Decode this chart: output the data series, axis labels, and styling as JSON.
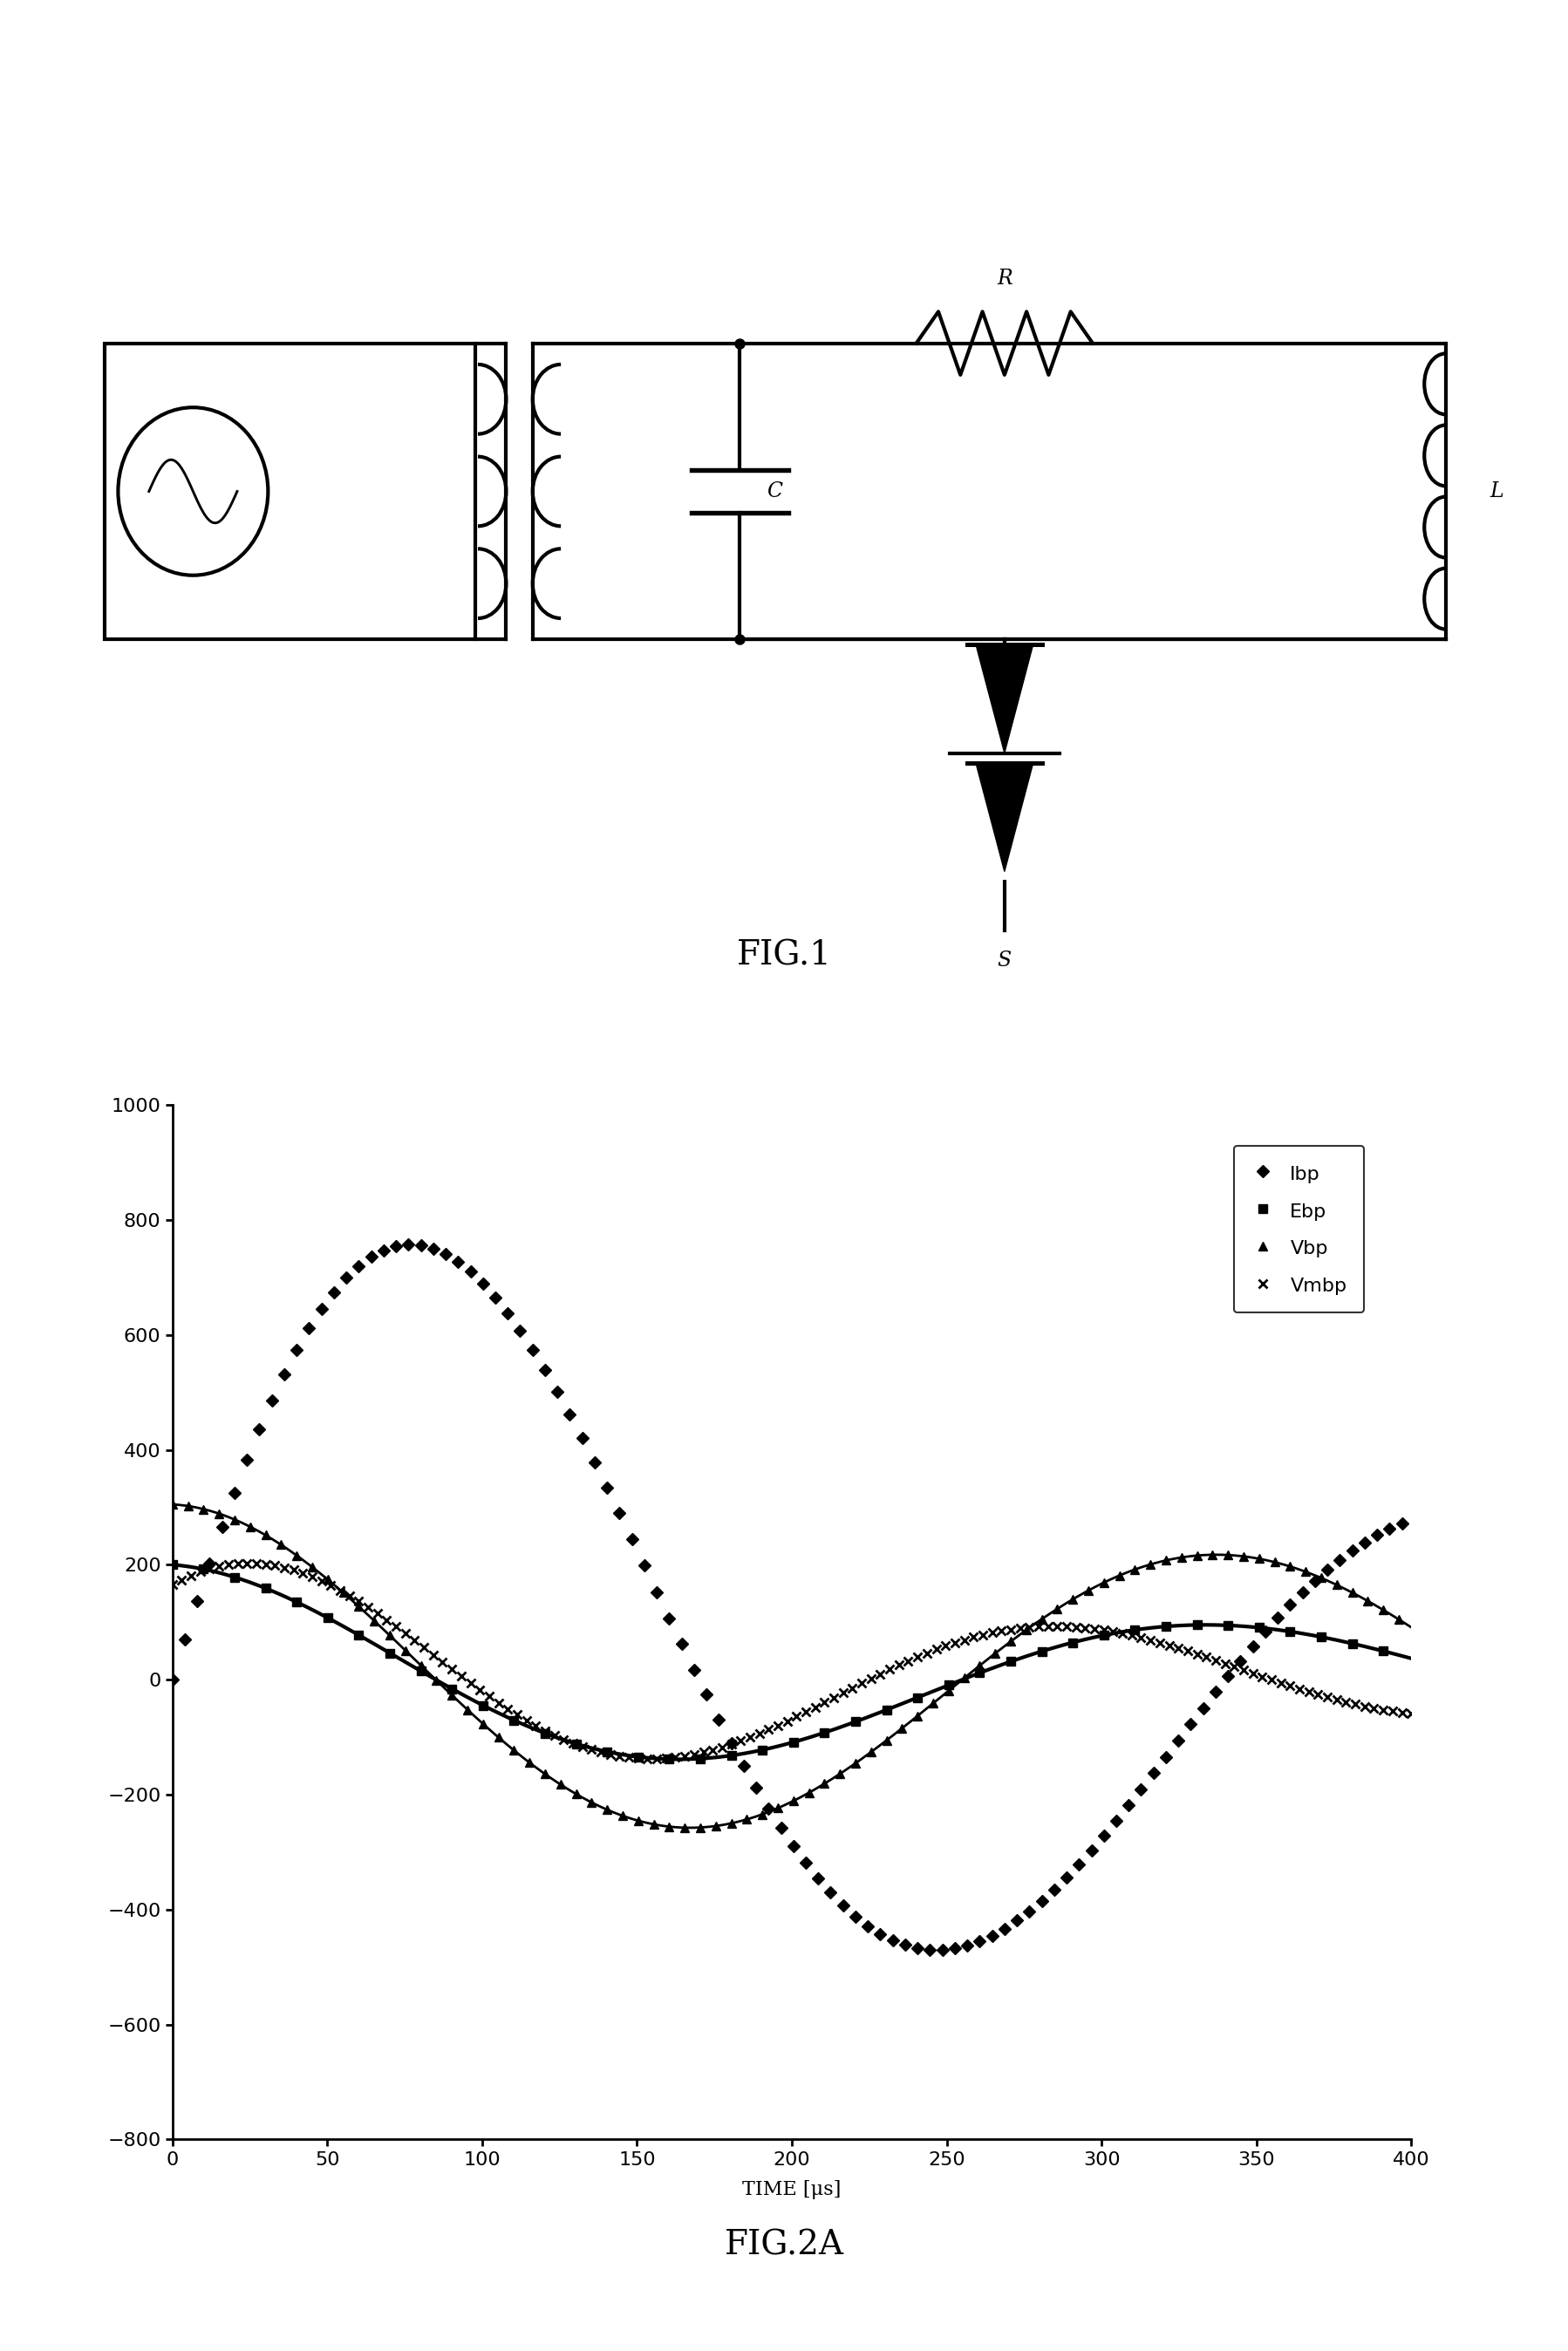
{
  "title_fig1": "FIG.1",
  "title_fig2a": "FIG.2A",
  "xlabel": "TIME [μs]",
  "xlim": [
    0,
    400
  ],
  "ylim": [
    -800,
    1000
  ],
  "yticks": [
    -800,
    -600,
    -400,
    -200,
    0,
    200,
    400,
    600,
    800,
    1000
  ],
  "xticks": [
    0,
    50,
    100,
    150,
    200,
    250,
    300,
    350,
    400
  ],
  "legend_labels": [
    "Ibp",
    "Ebp",
    "Vbp",
    "Vmbp"
  ],
  "Ibp_A": 950,
  "Ibp_alpha": 0.0028,
  "Ibp_T": 340,
  "Ebp_A": 200,
  "Ebp_alpha": 0.0022,
  "Ebp_T": 340,
  "Vbp_A": 305,
  "Vbp_alpha": 0.001,
  "Vbp_T": 340,
  "Vmbp_A": 220,
  "Vmbp_alpha": 0.003,
  "Vmbp_T": 260,
  "fig1_label_fontsize": 28,
  "fig2a_label_fontsize": 28,
  "axis_fontsize": 16,
  "tick_fontsize": 16,
  "legend_fontsize": 16
}
